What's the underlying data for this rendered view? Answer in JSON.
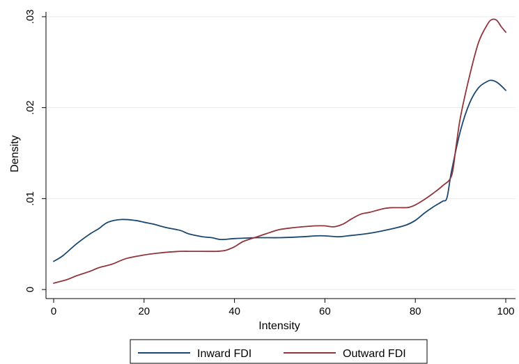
{
  "chart_data": {
    "type": "line",
    "title": "",
    "xlabel": "Intensity",
    "ylabel": "Density",
    "xlim": [
      0,
      100
    ],
    "ylim": [
      0,
      0.03
    ],
    "x_ticks": [
      0,
      20,
      40,
      60,
      80,
      100
    ],
    "x_tick_labels": [
      "0",
      "20",
      "40",
      "60",
      "80",
      "100"
    ],
    "y_ticks": [
      0,
      0.01,
      0.02,
      0.03
    ],
    "y_tick_labels": [
      "0",
      ".01",
      ".02",
      ".03"
    ],
    "grid": "horizontal",
    "legend_position": "bottom",
    "series": [
      {
        "name": "Inward FDI",
        "color": "#1a476f",
        "x": [
          0,
          2,
          5,
          8,
          10,
          12,
          15,
          18,
          20,
          22,
          25,
          28,
          30,
          33,
          35,
          37,
          40,
          45,
          50,
          55,
          58,
          60,
          63,
          65,
          70,
          75,
          78,
          80,
          82,
          84,
          86,
          87,
          88,
          90,
          92,
          94,
          96,
          97,
          98,
          99,
          100
        ],
        "y": [
          0.0031,
          0.0037,
          0.005,
          0.0061,
          0.0067,
          0.0074,
          0.0077,
          0.0076,
          0.0074,
          0.0072,
          0.0068,
          0.0065,
          0.0061,
          0.0058,
          0.0057,
          0.0055,
          0.0056,
          0.0057,
          0.0057,
          0.0058,
          0.0059,
          0.0059,
          0.0058,
          0.0059,
          0.0062,
          0.0067,
          0.0071,
          0.0076,
          0.0084,
          0.0091,
          0.0097,
          0.0101,
          0.013,
          0.0175,
          0.0205,
          0.0222,
          0.0229,
          0.023,
          0.0228,
          0.0224,
          0.0219
        ]
      },
      {
        "name": "Outward FDI",
        "color": "#90353b",
        "x": [
          0,
          3,
          5,
          8,
          10,
          13,
          16,
          20,
          23,
          25,
          28,
          30,
          33,
          36,
          38,
          40,
          42,
          45,
          48,
          50,
          53,
          55,
          58,
          60,
          62,
          64,
          66,
          68,
          70,
          73,
          75,
          78,
          79,
          80,
          82,
          84,
          86,
          88,
          89,
          90,
          92,
          94,
          96,
          97,
          98,
          99,
          100
        ],
        "y": [
          0.0007,
          0.0011,
          0.0015,
          0.002,
          0.0024,
          0.0028,
          0.0034,
          0.0038,
          0.004,
          0.0041,
          0.0042,
          0.0042,
          0.0042,
          0.0042,
          0.0043,
          0.0047,
          0.0053,
          0.0058,
          0.0063,
          0.0066,
          0.0068,
          0.0069,
          0.007,
          0.007,
          0.0069,
          0.0072,
          0.0078,
          0.0083,
          0.0085,
          0.0089,
          0.009,
          0.009,
          0.0091,
          0.0093,
          0.0099,
          0.0106,
          0.0114,
          0.0125,
          0.0157,
          0.019,
          0.0235,
          0.0272,
          0.0292,
          0.0297,
          0.0296,
          0.0289,
          0.0283
        ]
      }
    ]
  }
}
